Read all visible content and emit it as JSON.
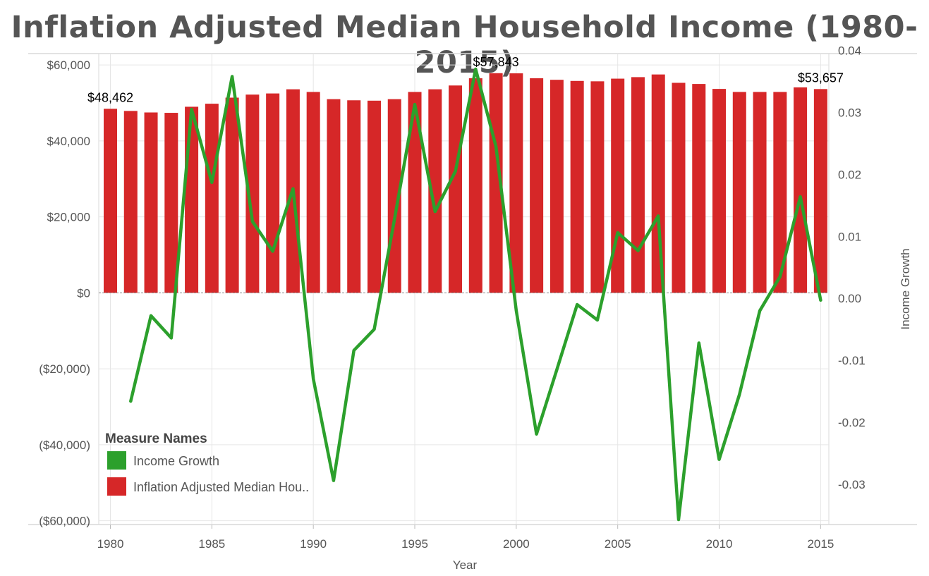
{
  "title": "Inflation Adjusted Median Household Income (1980-2015)",
  "colors": {
    "bar": "#d62728",
    "line": "#2ca02c",
    "grid": "#e6e6e6",
    "text": "#555555"
  },
  "chart_data": {
    "type": "bar",
    "title": "Inflation Adjusted Median Household Income (1980-2015)",
    "xlabel": "Year",
    "ylabel_left": "",
    "ylabel_right": "Income Growth",
    "x": [
      1980,
      1981,
      1982,
      1983,
      1984,
      1985,
      1986,
      1987,
      1988,
      1989,
      1990,
      1991,
      1992,
      1993,
      1994,
      1995,
      1996,
      1997,
      1998,
      1999,
      2000,
      2001,
      2002,
      2003,
      2004,
      2005,
      2006,
      2007,
      2008,
      2009,
      2010,
      2011,
      2012,
      2013,
      2014,
      2015
    ],
    "x_ticks": [
      {
        "value": 1980,
        "label": "1980"
      },
      {
        "value": 1985,
        "label": "1985"
      },
      {
        "value": 1990,
        "label": "1990"
      },
      {
        "value": 1995,
        "label": "1995"
      },
      {
        "value": 2000,
        "label": "2000"
      },
      {
        "value": 2005,
        "label": "2005"
      },
      {
        "value": 2010,
        "label": "2010"
      },
      {
        "value": 2015,
        "label": "2015"
      }
    ],
    "xlim": [
      1979.6,
      2015.3
    ],
    "ylim_left": [
      -61000,
      63000
    ],
    "ylim_right": [
      -0.0365,
      0.0395
    ],
    "y_left_ticks": [
      {
        "value": 60000,
        "label": "$60,000"
      },
      {
        "value": 40000,
        "label": "$40,000"
      },
      {
        "value": 20000,
        "label": "$20,000"
      },
      {
        "value": 0,
        "label": "$0"
      },
      {
        "value": -20000,
        "label": "($20,000)"
      },
      {
        "value": -40000,
        "label": "($40,000)"
      },
      {
        "value": -60000,
        "label": "($60,000)"
      }
    ],
    "y_right_ticks": [
      {
        "value": 0.04,
        "label": "0.04"
      },
      {
        "value": 0.03,
        "label": "0.03"
      },
      {
        "value": 0.02,
        "label": "0.02"
      },
      {
        "value": 0.01,
        "label": "0.01"
      },
      {
        "value": 0,
        "label": "0.00"
      },
      {
        "value": -0.01,
        "label": "-0.01"
      },
      {
        "value": -0.02,
        "label": "-0.02"
      },
      {
        "value": -0.03,
        "label": "-0.03"
      }
    ],
    "grid": true,
    "legend": {
      "title": "Measure Names",
      "position": "bottom-left",
      "entries": [
        {
          "label": "Income Growth",
          "color": "#2ca02c"
        },
        {
          "label": "Inflation Adjusted Median Hou..",
          "color": "#d62728"
        }
      ]
    },
    "series": [
      {
        "type": "bar",
        "axis": "left",
        "color": "#d62728",
        "values": [
          48462,
          47900,
          47500,
          47400,
          49000,
          49800,
          51400,
          52200,
          52500,
          53600,
          52900,
          51000,
          50700,
          50600,
          51000,
          52900,
          53600,
          54600,
          56500,
          57843,
          57800,
          56500,
          56100,
          55800,
          55700,
          56400,
          56800,
          57500,
          55300,
          55000,
          53700,
          52900,
          52900,
          52900,
          54100,
          53657
        ]
      },
      {
        "type": "line",
        "axis": "right",
        "color": "#2ca02c",
        "x": [
          1981,
          1982,
          1983,
          1984,
          1985,
          1986,
          1987,
          1988,
          1989,
          1990,
          1991,
          1992,
          1993,
          1994,
          1995,
          1996,
          1997,
          1998,
          1999,
          2000,
          2001,
          2002,
          2003,
          2004,
          2005,
          2006,
          2007,
          2008,
          2009,
          2010,
          2011,
          2012,
          2013,
          2014,
          2015
        ],
        "values": [
          -0.0166,
          -0.0028,
          -0.0064,
          0.0305,
          0.0187,
          0.0358,
          0.0124,
          0.0076,
          0.0177,
          -0.013,
          -0.0294,
          -0.0084,
          -0.005,
          0.0128,
          0.0313,
          0.014,
          0.0205,
          0.037,
          0.0245,
          -0.002,
          -0.0219,
          -0.0115,
          -0.001,
          -0.0035,
          0.0106,
          0.0077,
          0.0133,
          -0.0357,
          -0.0072,
          -0.026,
          -0.0155,
          -0.002,
          0.0035,
          0.0164,
          -0.0003
        ]
      }
    ],
    "annotations": [
      {
        "x": 1980,
        "value": 48462,
        "label": "$48,462"
      },
      {
        "x": 1999,
        "value": 57843,
        "label": "$57,843"
      },
      {
        "x": 2015,
        "value": 53657,
        "label": "$53,657"
      }
    ]
  }
}
